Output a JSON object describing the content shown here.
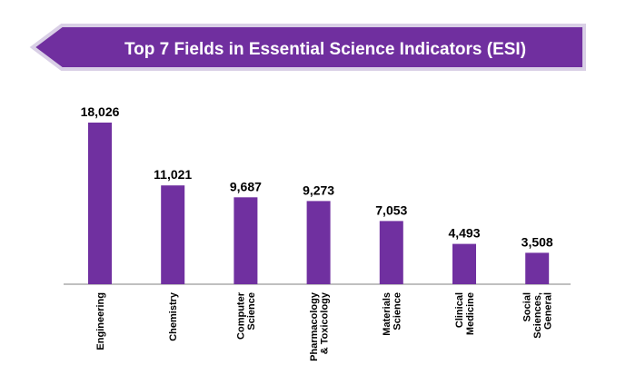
{
  "header": {
    "title": "Top 7 Fields in Essential Science Indicators (ESI)"
  },
  "colors": {
    "bar": "#7030a0",
    "banner": "#702f9f",
    "banner_border": "#d9cfe6",
    "label": "#000000",
    "axis": "#808080"
  },
  "chart_data": {
    "type": "bar",
    "title": "Top 7 Fields in Essential Science Indicators (ESI)",
    "categories": [
      "Engineering",
      "Chemistry",
      "Computer Science",
      "Pharmacology & Toxicology",
      "Materials Science",
      "Clinical Medicine",
      "Social Sciences, General"
    ],
    "category_lines": [
      [
        "Engineering"
      ],
      [
        "Chemistry"
      ],
      [
        "Computer",
        "Science"
      ],
      [
        "Pharmacology",
        "& Toxicology"
      ],
      [
        "Materials",
        "Science"
      ],
      [
        "Clinical",
        "Medicine"
      ],
      [
        "Social",
        "Sciences,",
        "General"
      ]
    ],
    "values": [
      18026,
      11021,
      9687,
      9273,
      7053,
      4493,
      3508
    ],
    "value_labels": [
      "18,026",
      "11,021",
      "9,687",
      "9,273",
      "7,053",
      "4,493",
      "3,508"
    ],
    "ylim": [
      0,
      18026
    ],
    "xlabel": "",
    "ylabel": "",
    "grid": false,
    "legend": "none"
  }
}
